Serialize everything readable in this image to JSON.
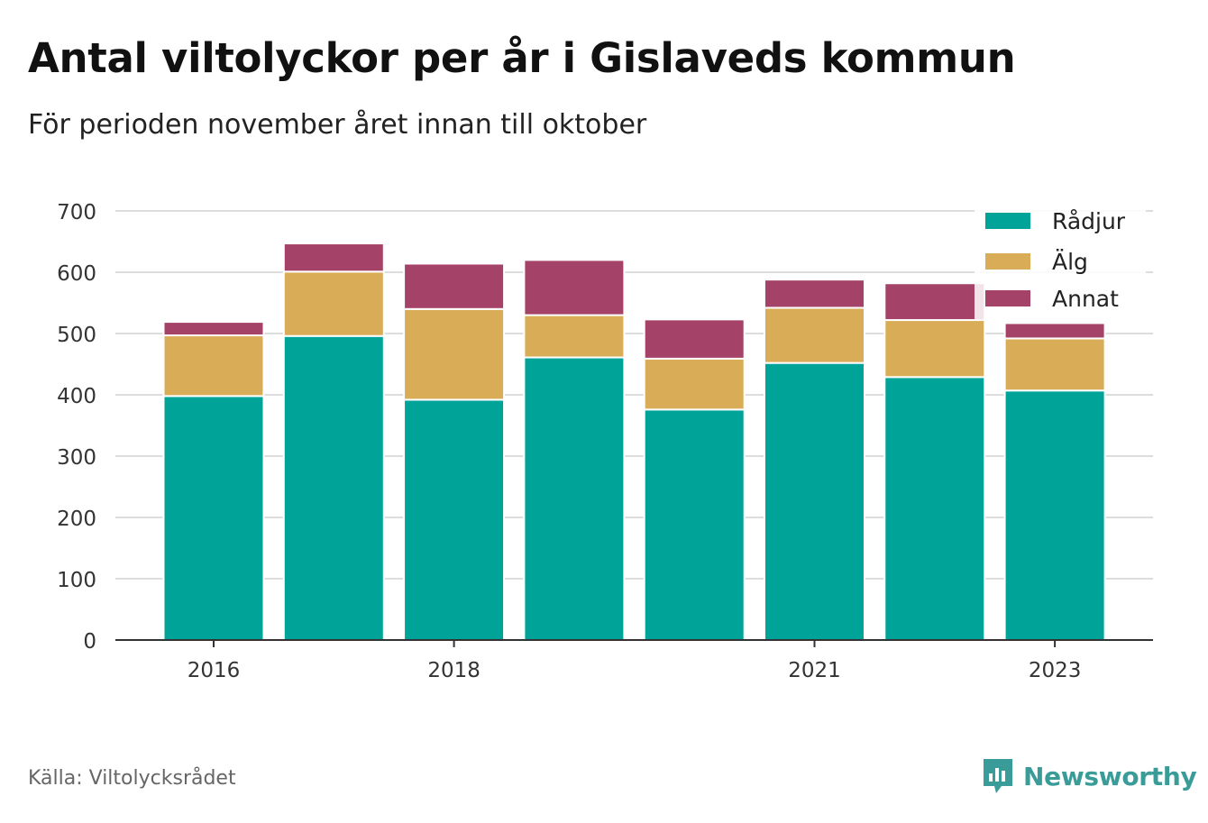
{
  "title": "Antal viltolyckor per år i Gislaveds kommun",
  "subtitle": "För perioden november året innan till oktober",
  "source": "Källa: Viltolycksrådet",
  "brand": "Newsworthy",
  "colors": {
    "Rådjur": "#00a398",
    "Älg": "#d9ac58",
    "Annat": "#a44268",
    "axis": "#333333",
    "grid": "#dddddd",
    "brand": "#3a9c98"
  },
  "chart_data": {
    "type": "bar",
    "stacked": true,
    "x": [
      2016,
      2017,
      2018,
      2019,
      2020,
      2021,
      2022,
      2023
    ],
    "x_tick_labels": [
      "2016",
      "2018",
      "2021",
      "2023"
    ],
    "x_tick_values": [
      2016,
      2018,
      2021,
      2023
    ],
    "ylim": [
      0,
      700
    ],
    "y_ticks": [
      0,
      100,
      200,
      300,
      400,
      500,
      600,
      700
    ],
    "grid": true,
    "legend_position": "top-right",
    "series": [
      {
        "name": "Rådjur",
        "values": [
          398,
          496,
          392,
          461,
          376,
          452,
          429,
          407
        ]
      },
      {
        "name": "Älg",
        "values": [
          99,
          105,
          148,
          69,
          83,
          90,
          93,
          85
        ]
      },
      {
        "name": "Annat",
        "values": [
          22,
          46,
          74,
          90,
          64,
          46,
          60,
          25
        ]
      }
    ]
  }
}
